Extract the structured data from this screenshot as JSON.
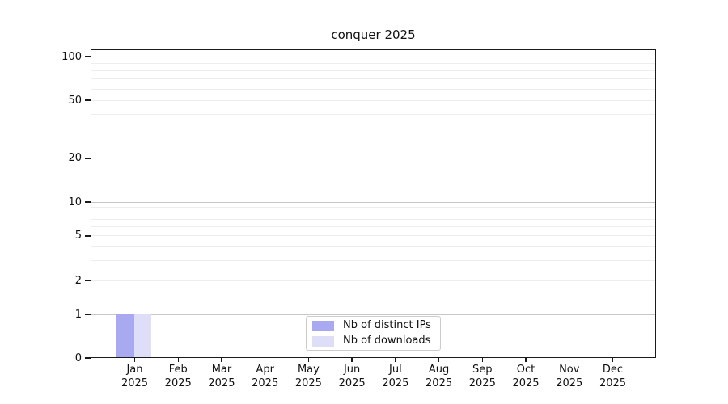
{
  "chart": {
    "title": "conquer 2025",
    "y_axis": {
      "tick_labels": [
        "100",
        "50",
        "20",
        "10",
        "5",
        "2",
        "1",
        "0"
      ],
      "tick_values": [
        100,
        50,
        20,
        10,
        5,
        2,
        1,
        0
      ]
    },
    "x_axis": {
      "months": [
        "Jan",
        "Feb",
        "Mar",
        "Apr",
        "May",
        "Jun",
        "Jul",
        "Aug",
        "Sep",
        "Oct",
        "Nov",
        "Dec"
      ],
      "year": "2025"
    },
    "legend": [
      {
        "label": "Nb of distinct IPs",
        "color": "#a9a9f2"
      },
      {
        "label": "Nb of downloads",
        "color": "#dedef8"
      }
    ]
  },
  "chart_data": {
    "type": "bar",
    "title": "conquer 2025",
    "categories": [
      "Jan 2025",
      "Feb 2025",
      "Mar 2025",
      "Apr 2025",
      "May 2025",
      "Jun 2025",
      "Jul 2025",
      "Aug 2025",
      "Sep 2025",
      "Oct 2025",
      "Nov 2025",
      "Dec 2025"
    ],
    "series": [
      {
        "name": "Nb of distinct IPs",
        "color": "#a9a9f2",
        "values": [
          1,
          0,
          0,
          0,
          0,
          0,
          0,
          0,
          0,
          0,
          0,
          0
        ]
      },
      {
        "name": "Nb of downloads",
        "color": "#dedef8",
        "values": [
          1,
          0,
          0,
          0,
          0,
          0,
          0,
          0,
          0,
          0,
          0,
          0
        ]
      }
    ],
    "yscale": "symlog",
    "ylim": [
      0,
      112
    ],
    "y_major_gridlines": [
      1,
      10,
      100
    ],
    "y_minor_gridlines": [
      2,
      3,
      4,
      5,
      6,
      7,
      8,
      9,
      20,
      30,
      40,
      50,
      60,
      70,
      80,
      90
    ],
    "grid": "horizontal",
    "legend_position": "lower center"
  }
}
